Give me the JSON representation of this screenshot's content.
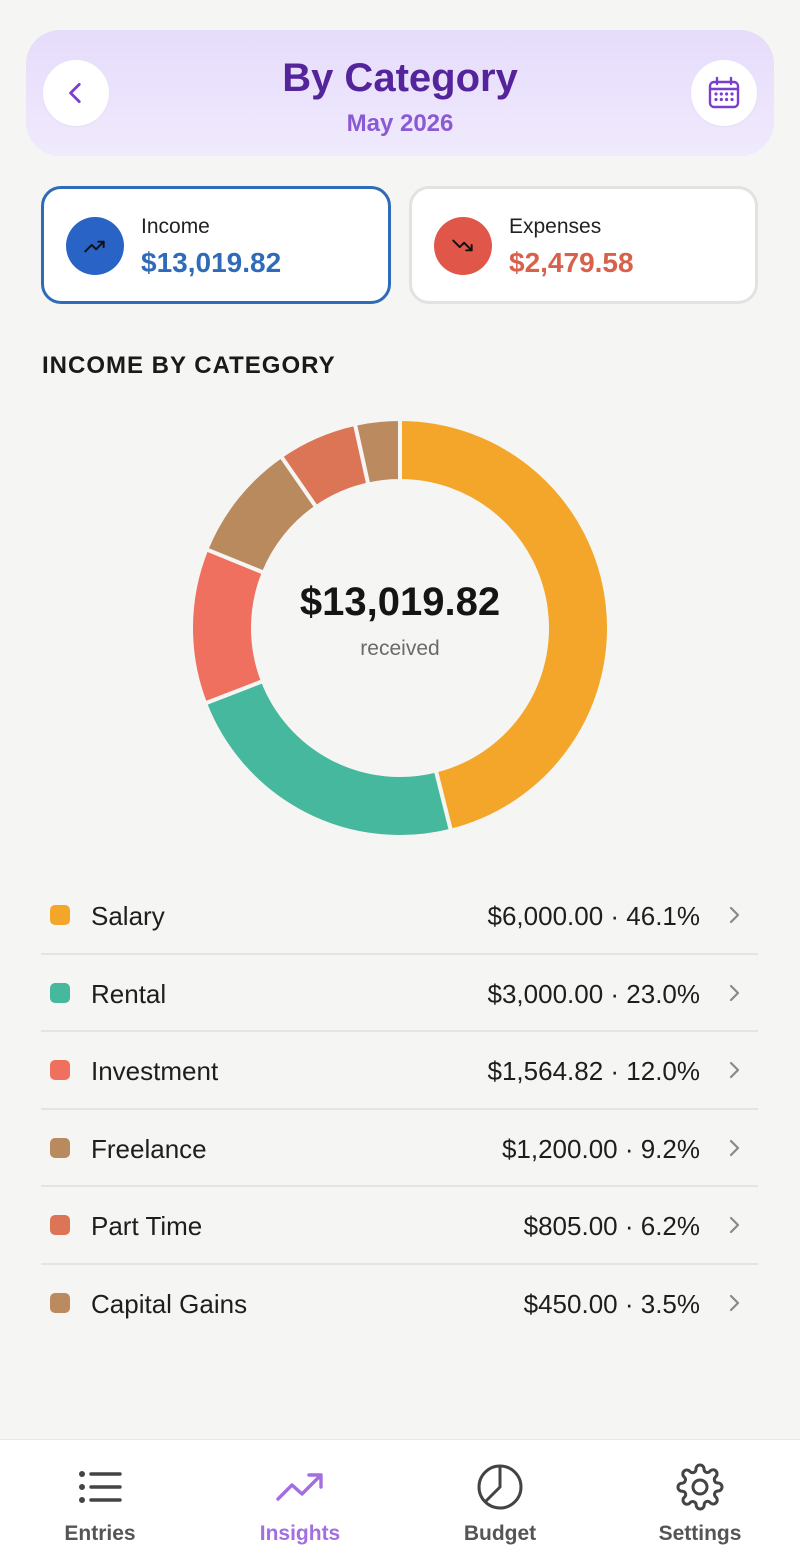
{
  "header": {
    "title": "By Category",
    "subtitle": "May 2026",
    "back_icon": "chevron-left-icon",
    "calendar_icon": "calendar-icon"
  },
  "summary": {
    "income": {
      "label": "Income",
      "value": "$13,019.82",
      "icon": "trending-up-icon",
      "color": "#2f6bb8",
      "icon_bg": "#2a63c6"
    },
    "expenses": {
      "label": "Expenses",
      "value": "$2,479.58",
      "icon": "trending-down-icon",
      "color": "#d9604a",
      "icon_bg": "#e0574a"
    }
  },
  "section_title": "INCOME BY CATEGORY",
  "donut": {
    "total": "$13,019.82",
    "caption": "received"
  },
  "chart_data": {
    "type": "pie",
    "title": "INCOME BY CATEGORY",
    "categories": [
      "Salary",
      "Rental",
      "Investment",
      "Freelance",
      "Part Time",
      "Capital Gains"
    ],
    "values": [
      6000.0,
      3000.0,
      1564.82,
      1200.0,
      805.0,
      450.0
    ],
    "percentages": [
      46.1,
      23.0,
      12.0,
      9.2,
      6.2,
      3.5
    ],
    "colors": [
      "#f4a62a",
      "#46b89d",
      "#f07060",
      "#b98a5e",
      "#dc7556",
      "#bb8a5f"
    ]
  },
  "categories": [
    {
      "name": "Salary",
      "value": "$6,000.00 · 46.1%",
      "color": "#f4a62a"
    },
    {
      "name": "Rental",
      "value": "$3,000.00 · 23.0%",
      "color": "#46b89d"
    },
    {
      "name": "Investment",
      "value": "$1,564.82 · 12.0%",
      "color": "#f07060"
    },
    {
      "name": "Freelance",
      "value": "$1,200.00 · 9.2%",
      "color": "#b98a5e"
    },
    {
      "name": "Part Time",
      "value": "$805.00 · 6.2%",
      "color": "#dc7556"
    },
    {
      "name": "Capital Gains",
      "value": "$450.00 · 3.5%",
      "color": "#bb8a5f"
    }
  ],
  "nav": {
    "items": [
      {
        "label": "Entries",
        "icon": "list-icon",
        "active": false
      },
      {
        "label": "Insights",
        "icon": "trending-up-icon",
        "active": true
      },
      {
        "label": "Budget",
        "icon": "pie-chart-icon",
        "active": false
      },
      {
        "label": "Settings",
        "icon": "gear-icon",
        "active": false
      }
    ],
    "active_color": "#a26ee0"
  }
}
